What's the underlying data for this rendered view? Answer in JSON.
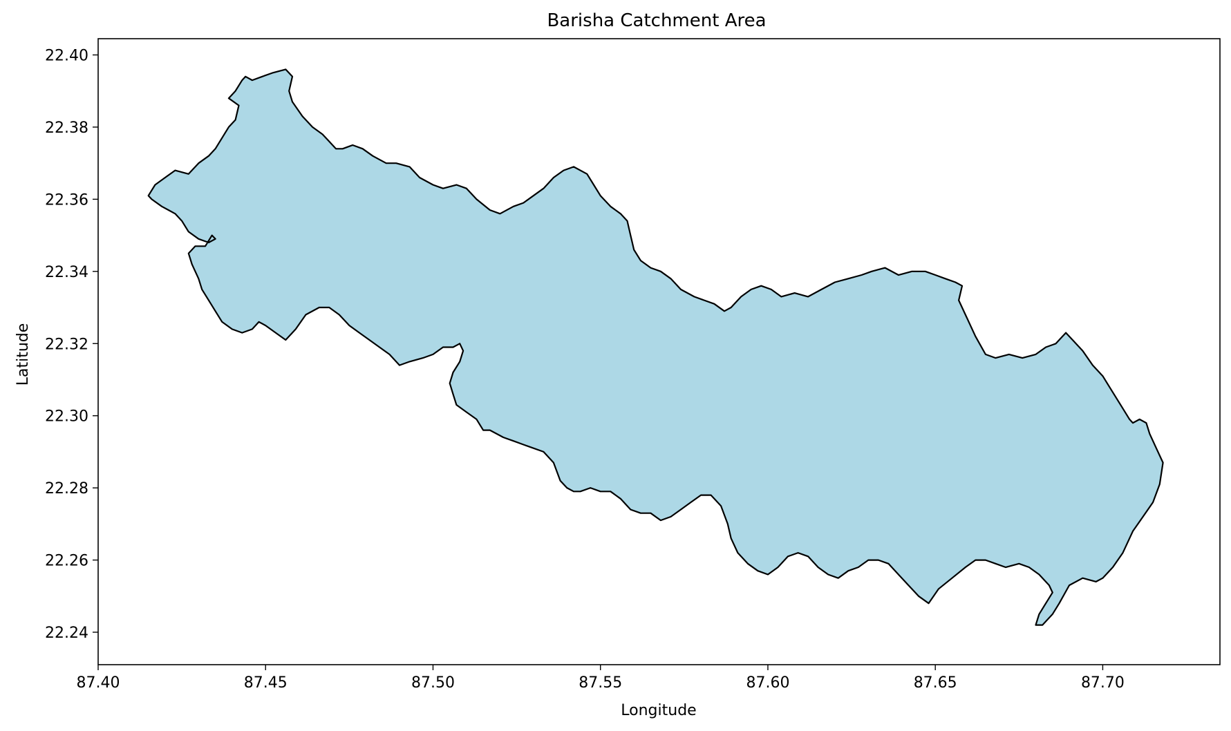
{
  "figure": {
    "title": "Barisha Catchment Area"
  },
  "colors": {
    "fill": "#add8e6",
    "edge": "#000000",
    "background": "#ffffff"
  },
  "chart_data": {
    "type": "map",
    "title": "Barisha Catchment Area",
    "xlabel": "Longitude",
    "ylabel": "Latitude",
    "xlim": [
      87.4,
      87.735
    ],
    "ylim": [
      22.231,
      22.4045
    ],
    "x_ticks": [
      "87.40",
      "87.45",
      "87.50",
      "87.55",
      "87.60",
      "87.65",
      "87.70"
    ],
    "y_ticks": [
      "22.24",
      "22.26",
      "22.28",
      "22.30",
      "22.32",
      "22.34",
      "22.36",
      "22.38",
      "22.40"
    ],
    "grid": false,
    "legend": "none",
    "polygon": {
      "name": "Barisha Catchment",
      "lon": [
        87.415,
        87.417,
        87.42,
        87.423,
        87.427,
        87.43,
        87.433,
        87.435,
        87.437,
        87.439,
        87.441,
        87.442,
        87.439,
        87.441,
        87.443,
        87.444,
        87.446,
        87.449,
        87.452,
        87.456,
        87.458,
        87.457,
        87.458,
        87.461,
        87.464,
        87.467,
        87.469,
        87.471,
        87.473,
        87.476,
        87.479,
        87.482,
        87.486,
        87.489,
        87.493,
        87.496,
        87.5,
        87.503,
        87.507,
        87.51,
        87.513,
        87.517,
        87.52,
        87.524,
        87.527,
        87.53,
        87.533,
        87.536,
        87.539,
        87.542,
        87.546,
        87.548,
        87.55,
        87.553,
        87.556,
        87.558,
        87.559,
        87.56,
        87.562,
        87.565,
        87.568,
        87.571,
        87.574,
        87.578,
        87.581,
        87.584,
        87.587,
        87.589,
        87.592,
        87.595,
        87.598,
        87.601,
        87.604,
        87.608,
        87.612,
        87.616,
        87.62,
        87.624,
        87.628,
        87.631,
        87.635,
        87.639,
        87.643,
        87.647,
        87.65,
        87.653,
        87.656,
        87.658,
        87.657,
        87.659,
        87.662,
        87.665,
        87.668,
        87.672,
        87.676,
        87.68,
        87.683,
        87.686,
        87.688,
        87.689,
        87.691,
        87.694,
        87.697,
        87.7,
        87.702,
        87.704,
        87.706,
        87.708,
        87.709,
        87.711,
        87.713,
        87.714,
        87.716,
        87.718,
        87.717,
        87.715,
        87.712,
        87.709,
        87.706,
        87.703,
        87.7,
        87.698,
        87.694,
        87.69,
        87.687,
        87.685,
        87.682,
        87.68,
        87.681,
        87.683,
        87.685,
        87.684,
        87.681,
        87.678,
        87.675,
        87.671,
        87.668,
        87.665,
        87.662,
        87.659,
        87.655,
        87.651,
        87.648,
        87.645,
        87.642,
        87.639,
        87.636,
        87.633,
        87.63,
        87.627,
        87.624,
        87.621,
        87.618,
        87.615,
        87.612,
        87.609,
        87.606,
        87.603,
        87.6,
        87.597,
        87.594,
        87.591,
        87.589,
        87.588,
        87.586,
        87.583,
        87.58,
        87.577,
        87.574,
        87.571,
        87.568,
        87.565,
        87.562,
        87.559,
        87.556,
        87.553,
        87.55,
        87.547,
        87.544,
        87.542,
        87.54,
        87.538,
        87.536,
        87.533,
        87.53,
        87.527,
        87.524,
        87.521,
        87.517,
        87.515,
        87.513,
        87.51,
        87.507,
        87.506,
        87.505,
        87.506,
        87.508,
        87.509,
        87.508,
        87.506,
        87.503,
        87.5,
        87.497,
        87.493,
        87.49,
        87.487,
        87.484,
        87.481,
        87.478,
        87.475,
        87.472,
        87.469,
        87.466,
        87.462,
        87.459,
        87.456,
        87.453,
        87.45,
        87.448,
        87.446,
        87.443,
        87.44,
        87.437,
        87.435,
        87.433,
        87.431,
        87.43,
        87.428,
        87.427,
        87.429,
        87.432,
        87.434,
        87.435,
        87.433,
        87.43,
        87.427,
        87.425,
        87.423,
        87.421,
        87.419,
        87.416
      ],
      "lat": [
        22.361,
        22.364,
        22.366,
        22.368,
        22.367,
        22.37,
        22.372,
        22.374,
        22.377,
        22.38,
        22.382,
        22.386,
        22.388,
        22.39,
        22.393,
        22.394,
        22.393,
        22.394,
        22.395,
        22.396,
        22.394,
        22.39,
        22.387,
        22.383,
        22.38,
        22.378,
        22.376,
        22.374,
        22.374,
        22.375,
        22.374,
        22.372,
        22.37,
        22.37,
        22.369,
        22.366,
        22.364,
        22.363,
        22.364,
        22.363,
        22.36,
        22.357,
        22.356,
        22.358,
        22.359,
        22.361,
        22.363,
        22.366,
        22.368,
        22.369,
        22.367,
        22.364,
        22.361,
        22.358,
        22.356,
        22.354,
        22.35,
        22.346,
        22.343,
        22.341,
        22.34,
        22.338,
        22.335,
        22.333,
        22.332,
        22.331,
        22.329,
        22.33,
        22.333,
        22.335,
        22.336,
        22.335,
        22.333,
        22.334,
        22.333,
        22.335,
        22.337,
        22.338,
        22.339,
        22.34,
        22.341,
        22.339,
        22.34,
        22.34,
        22.339,
        22.338,
        22.337,
        22.336,
        22.332,
        22.328,
        22.322,
        22.317,
        22.316,
        22.317,
        22.316,
        22.317,
        22.319,
        22.32,
        22.322,
        22.323,
        22.321,
        22.318,
        22.314,
        22.311,
        22.308,
        22.305,
        22.302,
        22.299,
        22.298,
        22.299,
        22.298,
        22.295,
        22.291,
        22.287,
        22.281,
        22.276,
        22.272,
        22.268,
        22.262,
        22.258,
        22.255,
        22.254,
        22.255,
        22.253,
        22.248,
        22.245,
        22.242,
        22.242,
        22.245,
        22.248,
        22.251,
        22.253,
        22.256,
        22.258,
        22.259,
        22.258,
        22.259,
        22.26,
        22.26,
        22.258,
        22.255,
        22.252,
        22.248,
        22.25,
        22.253,
        22.256,
        22.259,
        22.26,
        22.26,
        22.258,
        22.257,
        22.255,
        22.256,
        22.258,
        22.261,
        22.262,
        22.261,
        22.258,
        22.256,
        22.257,
        22.259,
        22.262,
        22.266,
        22.27,
        22.275,
        22.278,
        22.278,
        22.276,
        22.274,
        22.272,
        22.271,
        22.273,
        22.273,
        22.274,
        22.277,
        22.279,
        22.279,
        22.28,
        22.279,
        22.279,
        22.28,
        22.282,
        22.287,
        22.29,
        22.291,
        22.292,
        22.293,
        22.294,
        22.296,
        22.296,
        22.299,
        22.301,
        22.303,
        22.306,
        22.309,
        22.312,
        22.315,
        22.318,
        22.32,
        22.319,
        22.319,
        22.317,
        22.316,
        22.315,
        22.314,
        22.317,
        22.319,
        22.321,
        22.323,
        22.325,
        22.328,
        22.33,
        22.33,
        22.328,
        22.324,
        22.321,
        22.323,
        22.325,
        22.326,
        22.324,
        22.323,
        22.324,
        22.326,
        22.329,
        22.332,
        22.335,
        22.338,
        22.342,
        22.345,
        22.347,
        22.347,
        22.35,
        22.349,
        22.348,
        22.349,
        22.351,
        22.354,
        22.356,
        22.357,
        22.358,
        22.36
      ]
    }
  }
}
